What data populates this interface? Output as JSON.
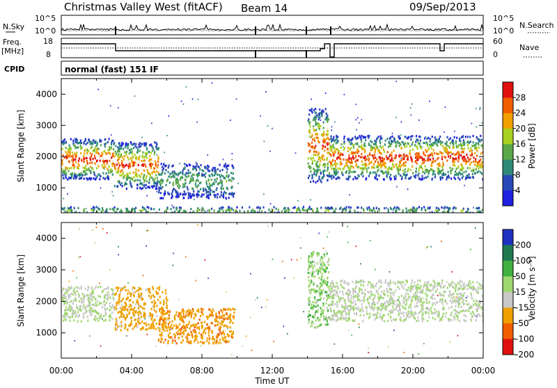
{
  "header": {
    "station": "Christmas Valley West (fitACF)",
    "beam": "Beam 14",
    "date": "09/Sep/2013"
  },
  "strips": {
    "nsky_label": "N.Sky",
    "nsky_ticks": [
      "10^5",
      "10^0"
    ],
    "nsearch_label": "N.Search",
    "nsearch_ticks": [
      "10^5",
      "10^0"
    ],
    "freq_label_1": "Freq.",
    "freq_label_2": "[MHz]",
    "freq_ticks": [
      "18",
      "8"
    ],
    "nave_label": "Nave",
    "nave_ticks": [
      "60",
      "0"
    ],
    "cpid_label": "CPID",
    "cpid_text": "normal (fast) 151 IF"
  },
  "chart_data": [
    {
      "type": "heatmap",
      "panel": "power",
      "ylabel": "Slant Range [km]",
      "yticks": [
        "1000",
        "2000",
        "3000",
        "4000"
      ],
      "ylim": [
        200,
        4500
      ],
      "xlim": [
        0,
        24
      ],
      "colorbar": {
        "label": "Power [dB]",
        "ticks": [
          "4",
          "8",
          "12",
          "16",
          "20",
          "24",
          "28"
        ],
        "colors": [
          "#2020e0",
          "#2848b8",
          "#2f8a78",
          "#5aa84a",
          "#a8d020",
          "#f0a000",
          "#f06000",
          "#e01010"
        ]
      },
      "regions": [
        {
          "t0": 0.0,
          "t1": 3.0,
          "r0": 1300,
          "r1": 2600,
          "peak_db": 30
        },
        {
          "t0": 3.0,
          "t1": 5.5,
          "r0": 1000,
          "r1": 2500,
          "peak_db": 28
        },
        {
          "t0": 5.5,
          "t1": 9.8,
          "r0": 700,
          "r1": 1800,
          "peak_db": 14
        },
        {
          "t0": 14.0,
          "t1": 15.2,
          "r0": 1200,
          "r1": 3600,
          "peak_db": 28
        },
        {
          "t0": 15.2,
          "t1": 24.0,
          "r0": 1300,
          "r1": 2700,
          "peak_db": 30
        },
        {
          "t0": 0.0,
          "t1": 24.0,
          "r0": 200,
          "r1": 420,
          "peak_db": 16
        }
      ]
    },
    {
      "type": "heatmap",
      "panel": "velocity",
      "xlabel": "Time UT",
      "ylabel": "Slant Range [km]",
      "xticks": [
        "00:00",
        "04:00",
        "08:00",
        "12:00",
        "16:00",
        "20:00",
        "00:00"
      ],
      "yticks": [
        "1000",
        "2000",
        "3000",
        "4000"
      ],
      "ylim": [
        200,
        4500
      ],
      "xlim": [
        0,
        24
      ],
      "colorbar": {
        "label": "Velocity [m s⁻¹]",
        "ticks": [
          "200",
          "100",
          "50",
          "15",
          "-15",
          "-50",
          "-100",
          "-200"
        ],
        "colors": [
          "#2030c0",
          "#207850",
          "#40b040",
          "#a0d870",
          "#c8c8c8",
          "#f0a000",
          "#f06000",
          "#e01010"
        ]
      },
      "regions": [
        {
          "t0": 0.0,
          "t1": 3.0,
          "r0": 1400,
          "r1": 2500,
          "velocity": 0
        },
        {
          "t0": 3.0,
          "t1": 6.0,
          "r0": 1100,
          "r1": 2500,
          "velocity": -50
        },
        {
          "t0": 5.5,
          "t1": 9.8,
          "r0": 700,
          "r1": 1800,
          "velocity": -60
        },
        {
          "t0": 14.0,
          "t1": 15.2,
          "r0": 1200,
          "r1": 3600,
          "velocity": 20
        },
        {
          "t0": 15.2,
          "t1": 24.0,
          "r0": 1400,
          "r1": 2700,
          "velocity": 0
        }
      ]
    }
  ]
}
